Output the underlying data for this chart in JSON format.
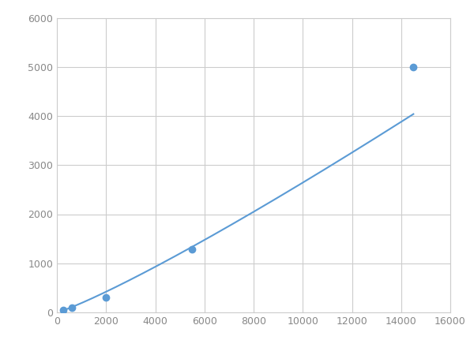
{
  "x_points": [
    250,
    625,
    2000,
    5500,
    14500
  ],
  "y_points": [
    50,
    100,
    310,
    1280,
    5000
  ],
  "line_color": "#5b9bd5",
  "marker_color": "#5b9bd5",
  "marker_size": 6,
  "line_width": 1.5,
  "xlim": [
    0,
    16000
  ],
  "ylim": [
    0,
    6000
  ],
  "xticks": [
    0,
    2000,
    4000,
    6000,
    8000,
    10000,
    12000,
    14000,
    16000
  ],
  "yticks": [
    0,
    1000,
    2000,
    3000,
    4000,
    5000,
    6000
  ],
  "grid_color": "#cccccc",
  "bg_color": "#ffffff",
  "figsize": [
    6.0,
    4.5
  ],
  "dpi": 100
}
